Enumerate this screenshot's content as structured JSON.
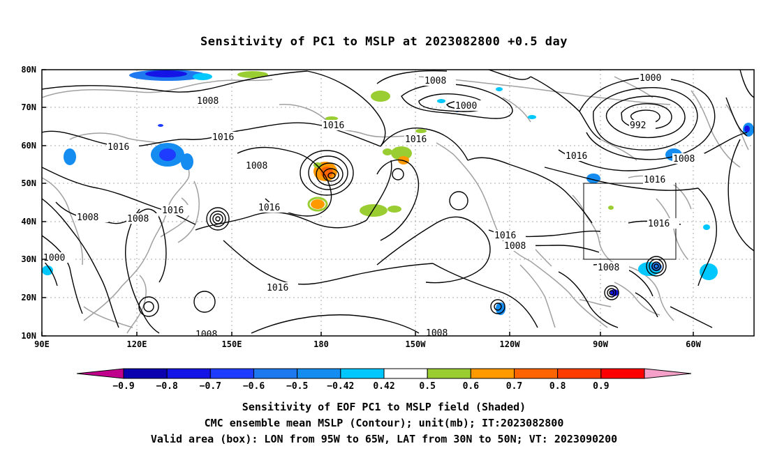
{
  "title": "Sensitivity of PC1 to MSLP at 2023082800 +0.5 day",
  "lat_labels": [
    "80N",
    "70N",
    "60N",
    "50N",
    "40N",
    "30N",
    "20N",
    "10N"
  ],
  "lon_labels": [
    "90E",
    "120E",
    "150E",
    "180",
    "150W",
    "120W",
    "90W",
    "60W"
  ],
  "colorbar": {
    "labels": [
      "-0.9",
      "-0.8",
      "-0.7",
      "-0.6",
      "-0.5",
      "-0.42",
      "0.42",
      "0.5",
      "0.6",
      "0.7",
      "0.8",
      "0.9"
    ],
    "colors": [
      "#c0008c",
      "#0a00b0",
      "#1414e6",
      "#1e3cff",
      "#1e78f0",
      "#148cf0",
      "#00c8ff",
      "#ffffff",
      "#9acd32",
      "#ff9900",
      "#ff6400",
      "#ff3c00",
      "#ff0000",
      "#f5a0c8"
    ]
  },
  "contour_labels": {
    "c1008_nw": "1008",
    "c1016_nw": "1016",
    "c1016_a": "1016",
    "c1008_b": "1008",
    "c1016_c": "1016",
    "c1016_d": "1016",
    "c1008_w": "1008",
    "c1008_w2": "1008",
    "c1000_w": "1000",
    "c1016_e": "1016",
    "c1008_n": "1008",
    "c1000_n": "1000",
    "c1016_f": "1016",
    "c1016_g": "1016",
    "c1008_g": "1008",
    "c1000_ne": "1000",
    "c992": "992",
    "c1016_ne": "1016",
    "c1008_ne": "1008",
    "c1016_box": "1016",
    "c1016_box2": "1016",
    "c1008_gulf": "1008",
    "c1008_s": "1008",
    "c1008_s2": "1008"
  },
  "footer": {
    "line1": "Sensitivity of EOF PC1 to MSLP field (Shaded)",
    "line2": "CMC ensemble mean MSLP (Contour); unit(mb); IT:2023082800",
    "line3": "Valid area (box): LON from 95W to 65W, LAT from 30N to 50N; VT: 2023090200"
  }
}
